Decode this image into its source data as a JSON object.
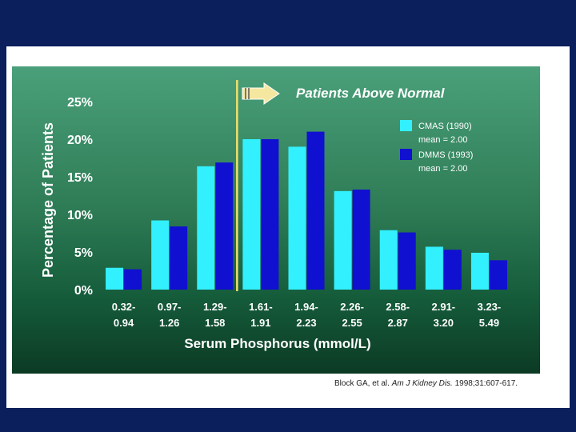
{
  "colors": {
    "page_bg": "#0a1f5c",
    "cmas": "#33f0ff",
    "dmms": "#1010d0",
    "normal_line": "#f2e06a",
    "text": "#ffffff"
  },
  "chart_data": {
    "type": "bar",
    "title": "Patients Above Normal",
    "ylabel": "Percentage of Patients",
    "xlabel": "Serum Phosphorus (mmol/L)",
    "ylim": [
      0,
      25
    ],
    "yticks": [
      "0%",
      "5%",
      "10%",
      "15%",
      "20%",
      "25%"
    ],
    "categories": [
      [
        "0.32-",
        "0.94"
      ],
      [
        "0.97-",
        "1.26"
      ],
      [
        "1.29-",
        "1.58"
      ],
      [
        "1.61-",
        "1.91"
      ],
      [
        "1.94-",
        "2.23"
      ],
      [
        "2.26-",
        "2.55"
      ],
      [
        "2.58-",
        "2.87"
      ],
      [
        "2.91-",
        "3.20"
      ],
      [
        "3.23-",
        "5.49"
      ]
    ],
    "series": [
      {
        "name": "CMAS (1990)",
        "mean_label": "mean = 2.00",
        "color_key": "cmas",
        "values": [
          2.9,
          9.2,
          16.4,
          20.0,
          19.0,
          13.1,
          7.9,
          5.7,
          4.9
        ]
      },
      {
        "name": "DMMS (1993)",
        "mean_label": "mean = 2.00",
        "color_key": "dmms",
        "values": [
          2.7,
          8.4,
          16.9,
          20.0,
          21.0,
          13.3,
          7.6,
          5.3,
          3.9
        ]
      }
    ],
    "normal_threshold_after_category": 2,
    "legend_position": "top-right"
  },
  "citation": {
    "authors": "Block GA, et al.",
    "journal": "Am J Kidney Dis.",
    "ref": "1998;31:607-617."
  }
}
